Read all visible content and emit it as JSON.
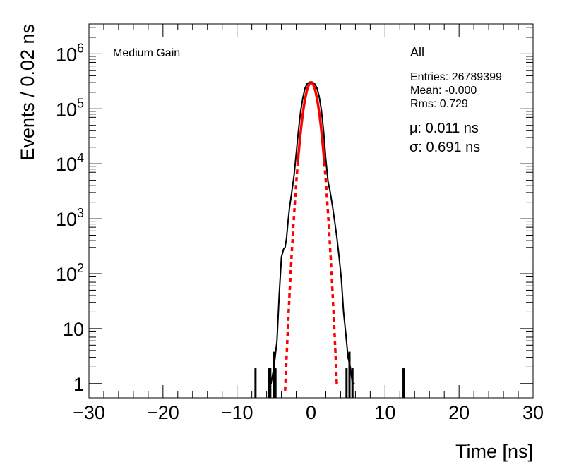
{
  "chart_data": {
    "type": "line",
    "title": "",
    "xlabel": "Time [ns]",
    "ylabel": "Events / 0.02 ns",
    "xlim": [
      -30,
      30
    ],
    "ylim": [
      0.55,
      3500000
    ],
    "y_scale": "log",
    "grid": false,
    "x_ticks": [
      "−30",
      "−20",
      "−10",
      "0",
      "10",
      "20",
      "30"
    ],
    "y_ticks": [
      {
        "value": 1,
        "label": "1"
      },
      {
        "value": 10,
        "label": "10"
      },
      {
        "value": 100,
        "label": "10",
        "exp": "2"
      },
      {
        "value": 1000,
        "label": "10",
        "exp": "3"
      },
      {
        "value": 10000,
        "label": "10",
        "exp": "4"
      },
      {
        "value": 100000,
        "label": "10",
        "exp": "5"
      },
      {
        "value": 1000000,
        "label": "10",
        "exp": "6"
      }
    ],
    "annotations": {
      "gain_label": "Medium Gain",
      "selection": "All",
      "entries": "Entries: 26789399",
      "mean": "Mean: -0.000",
      "rms": "Rms: 0.729",
      "fit_mu": "μ: 0.011 ns",
      "fit_sigma": "σ: 0.691 ns"
    },
    "series": [
      {
        "color": "#000000",
        "style": "histogram",
        "x": [
          -5.8,
          -5.4,
          -5.0,
          -4.6,
          -4.3,
          -4.0,
          -3.7,
          -3.5,
          -3.3,
          -3.1,
          -2.9,
          -2.6,
          -2.3,
          -2.0,
          -1.7,
          -1.4,
          -1.1,
          -0.8,
          -0.5,
          -0.2,
          0.0,
          0.2,
          0.5,
          0.8,
          1.1,
          1.4,
          1.7,
          2.0,
          2.3,
          2.6,
          2.9,
          3.2,
          3.5,
          3.8,
          4.1,
          4.4,
          4.7,
          5.0,
          5.3,
          5.6,
          5.9
        ],
        "y": [
          1,
          1,
          2,
          6,
          40,
          200,
          280,
          300,
          450,
          900,
          1600,
          3000,
          6000,
          15000,
          40000,
          90000,
          160000,
          240000,
          290000,
          305000,
          310000,
          305000,
          285000,
          240000,
          170000,
          95000,
          40000,
          12000,
          4800,
          3000,
          1700,
          900,
          450,
          200,
          80,
          20,
          8,
          3,
          2,
          1,
          1
        ]
      },
      {
        "color": "#ff0000",
        "style": "gaussian-fit",
        "amplitude": 300000,
        "mu": 0.011,
        "sigma": 0.691,
        "solid_range": [
          -1.8,
          1.8
        ],
        "dashed_range": [
          -3.5,
          3.5
        ]
      }
    ],
    "spikes": [
      {
        "x": -7.5,
        "y": 1
      },
      {
        "x": -5.7,
        "y": 1
      },
      {
        "x": -5.5,
        "y": 1
      },
      {
        "x": -5.0,
        "y": 2
      },
      {
        "x": -4.8,
        "y": 1
      },
      {
        "x": 4.8,
        "y": 1
      },
      {
        "x": 5.2,
        "y": 2
      },
      {
        "x": 5.6,
        "y": 1
      },
      {
        "x": 12.5,
        "y": 1
      }
    ]
  }
}
